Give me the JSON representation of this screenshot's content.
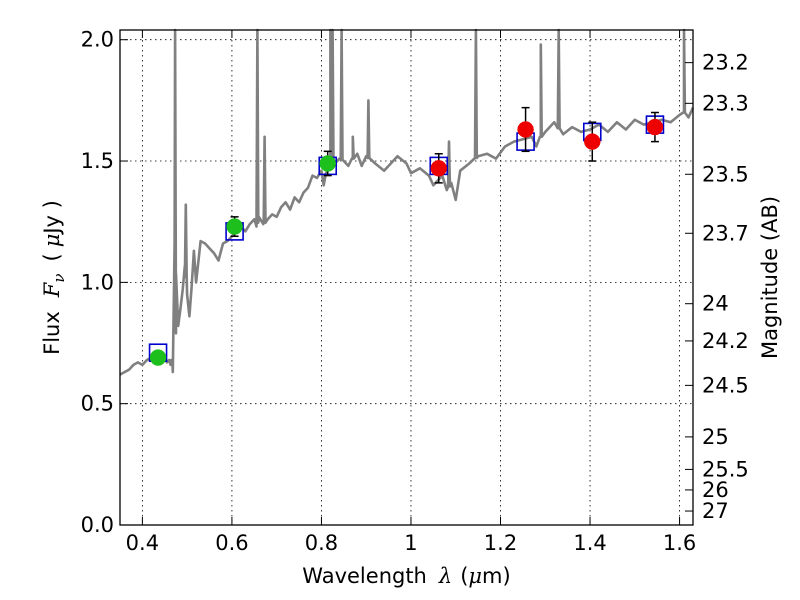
{
  "chart_data": {
    "type": "line",
    "x_axis": {
      "label_prefix": "Wavelength",
      "label_symbol": "λ",
      "label_unit_open": "(",
      "label_unit_mu": "μ",
      "label_unit_rest": "m)",
      "range": [
        0.35,
        1.63
      ],
      "ticks": [
        0.4,
        0.6,
        0.8,
        1.0,
        1.2,
        1.4,
        1.6
      ],
      "tick_labels": [
        "0.4",
        "0.6",
        "0.8",
        "1",
        "1.2",
        "1.4",
        "1.6"
      ]
    },
    "y_axis": {
      "label_prefix": "Flux",
      "label_symbol": "F",
      "label_sub": "ν",
      "label_unit_open": "(",
      "label_unit_mu": "μ",
      "label_unit_rest": "Jy )",
      "range": [
        0.0,
        2.04
      ],
      "ticks": [
        0.0,
        0.5,
        1.0,
        1.5,
        2.0
      ],
      "tick_labels": [
        "0.0",
        "0.5",
        "1.0",
        "1.5",
        "2.0"
      ]
    },
    "y2_axis": {
      "label": "Magnitude (AB)",
      "ticks": [
        {
          "mag": 23.2,
          "label": "23.2"
        },
        {
          "mag": 23.3,
          "label": "23.3"
        },
        {
          "mag": 23.5,
          "label": "23.5"
        },
        {
          "mag": 23.7,
          "label": "23.7"
        },
        {
          "mag": 24.0,
          "label": "24"
        },
        {
          "mag": 24.2,
          "label": "24.2"
        },
        {
          "mag": 24.5,
          "label": "24.5"
        },
        {
          "mag": 25.0,
          "label": "25"
        },
        {
          "mag": 25.5,
          "label": "25.5"
        },
        {
          "mag": 26.0,
          "label": "26"
        },
        {
          "mag": 27.0,
          "label": "27"
        }
      ]
    },
    "grid": true,
    "colors": {
      "model": "#808080",
      "model_photometry": "#0000cc",
      "optical_points": "#1cbf1c",
      "nir_points": "#ee0000",
      "errorbar": "#000000"
    },
    "model_spectrum": {
      "x": [
        0.35,
        0.36,
        0.37,
        0.38,
        0.39,
        0.4,
        0.41,
        0.42,
        0.43,
        0.44,
        0.45,
        0.455,
        0.46,
        0.463,
        0.465,
        0.467,
        0.468,
        0.472,
        0.475,
        0.48,
        0.485,
        0.49,
        0.495,
        0.5,
        0.505,
        0.51,
        0.515,
        0.52,
        0.53,
        0.54,
        0.55,
        0.56,
        0.57,
        0.58,
        0.59,
        0.6,
        0.61,
        0.62,
        0.63,
        0.64,
        0.65,
        0.655,
        0.66,
        0.67,
        0.68,
        0.69,
        0.7,
        0.71,
        0.72,
        0.73,
        0.74,
        0.75,
        0.76,
        0.77,
        0.78,
        0.79,
        0.8,
        0.805,
        0.81,
        0.82,
        0.83,
        0.84,
        0.85,
        0.86,
        0.87,
        0.88,
        0.89,
        0.9,
        0.92,
        0.94,
        0.95,
        0.97,
        0.99,
        1.0,
        1.02,
        1.04,
        1.05,
        1.07,
        1.08,
        1.09,
        1.1,
        1.11,
        1.13,
        1.15,
        1.17,
        1.19,
        1.21,
        1.23,
        1.25,
        1.27,
        1.28,
        1.29,
        1.3,
        1.32,
        1.34,
        1.36,
        1.38,
        1.4,
        1.42,
        1.44,
        1.46,
        1.48,
        1.5,
        1.52,
        1.54,
        1.56,
        1.58,
        1.6,
        1.61,
        1.62,
        1.63
      ],
      "y": [
        0.62,
        0.63,
        0.64,
        0.66,
        0.67,
        0.66,
        0.68,
        0.69,
        0.68,
        0.7,
        0.69,
        0.67,
        0.68,
        0.66,
        0.68,
        0.67,
        0.63,
        1.16,
        0.79,
        0.82,
        0.89,
        0.97,
        1.07,
        0.95,
        0.86,
        0.98,
        1.13,
        1.0,
        1.17,
        1.16,
        1.14,
        1.12,
        1.09,
        1.16,
        1.17,
        1.19,
        1.21,
        1.23,
        1.21,
        1.24,
        1.26,
        1.23,
        1.27,
        1.24,
        1.26,
        1.28,
        1.27,
        1.31,
        1.33,
        1.3,
        1.35,
        1.33,
        1.37,
        1.39,
        1.44,
        1.43,
        1.46,
        1.4,
        1.45,
        1.47,
        1.49,
        1.51,
        1.5,
        1.48,
        1.51,
        1.53,
        1.48,
        1.52,
        1.49,
        1.46,
        1.48,
        1.52,
        1.49,
        1.45,
        1.47,
        1.44,
        1.4,
        1.44,
        1.38,
        1.41,
        1.34,
        1.46,
        1.49,
        1.52,
        1.53,
        1.51,
        1.56,
        1.58,
        1.59,
        1.6,
        1.56,
        1.6,
        1.62,
        1.66,
        1.61,
        1.64,
        1.62,
        1.63,
        1.65,
        1.62,
        1.66,
        1.63,
        1.67,
        1.65,
        1.66,
        1.67,
        1.66,
        1.69,
        1.7,
        1.68,
        1.72
      ],
      "emission_lines": [
        {
          "x": 0.473,
          "peak": 2.04
        },
        {
          "x": 0.497,
          "peak": 1.32
        },
        {
          "x": 0.657,
          "peak": 2.04
        },
        {
          "x": 0.673,
          "peak": 1.6
        },
        {
          "x": 0.82,
          "peak": 2.04
        },
        {
          "x": 0.825,
          "peak": 2.04
        },
        {
          "x": 0.845,
          "peak": 2.04
        },
        {
          "x": 0.87,
          "peak": 1.6
        },
        {
          "x": 0.905,
          "peak": 1.75
        },
        {
          "x": 1.085,
          "peak": 1.58
        },
        {
          "x": 1.145,
          "peak": 2.04
        },
        {
          "x": 1.29,
          "peak": 1.98
        },
        {
          "x": 1.33,
          "peak": 2.04
        },
        {
          "x": 1.61,
          "peak": 2.04
        }
      ]
    },
    "model_photometry": [
      {
        "x": 0.435,
        "y": 0.71
      },
      {
        "x": 0.606,
        "y": 1.21
      },
      {
        "x": 0.814,
        "y": 1.48
      },
      {
        "x": 1.062,
        "y": 1.48
      },
      {
        "x": 1.256,
        "y": 1.58
      },
      {
        "x": 1.405,
        "y": 1.62
      },
      {
        "x": 1.545,
        "y": 1.65
      }
    ],
    "observed_optical": [
      {
        "x": 0.435,
        "y": 0.69,
        "err": 0.02
      },
      {
        "x": 0.606,
        "y": 1.23,
        "err": 0.04
      },
      {
        "x": 0.814,
        "y": 1.49,
        "err": 0.05
      }
    ],
    "observed_nir": [
      {
        "x": 1.062,
        "y": 1.47,
        "err": 0.06
      },
      {
        "x": 1.256,
        "y": 1.63,
        "err": 0.09
      },
      {
        "x": 1.405,
        "y": 1.58,
        "err": 0.08
      },
      {
        "x": 1.545,
        "y": 1.64,
        "err": 0.06
      }
    ]
  }
}
